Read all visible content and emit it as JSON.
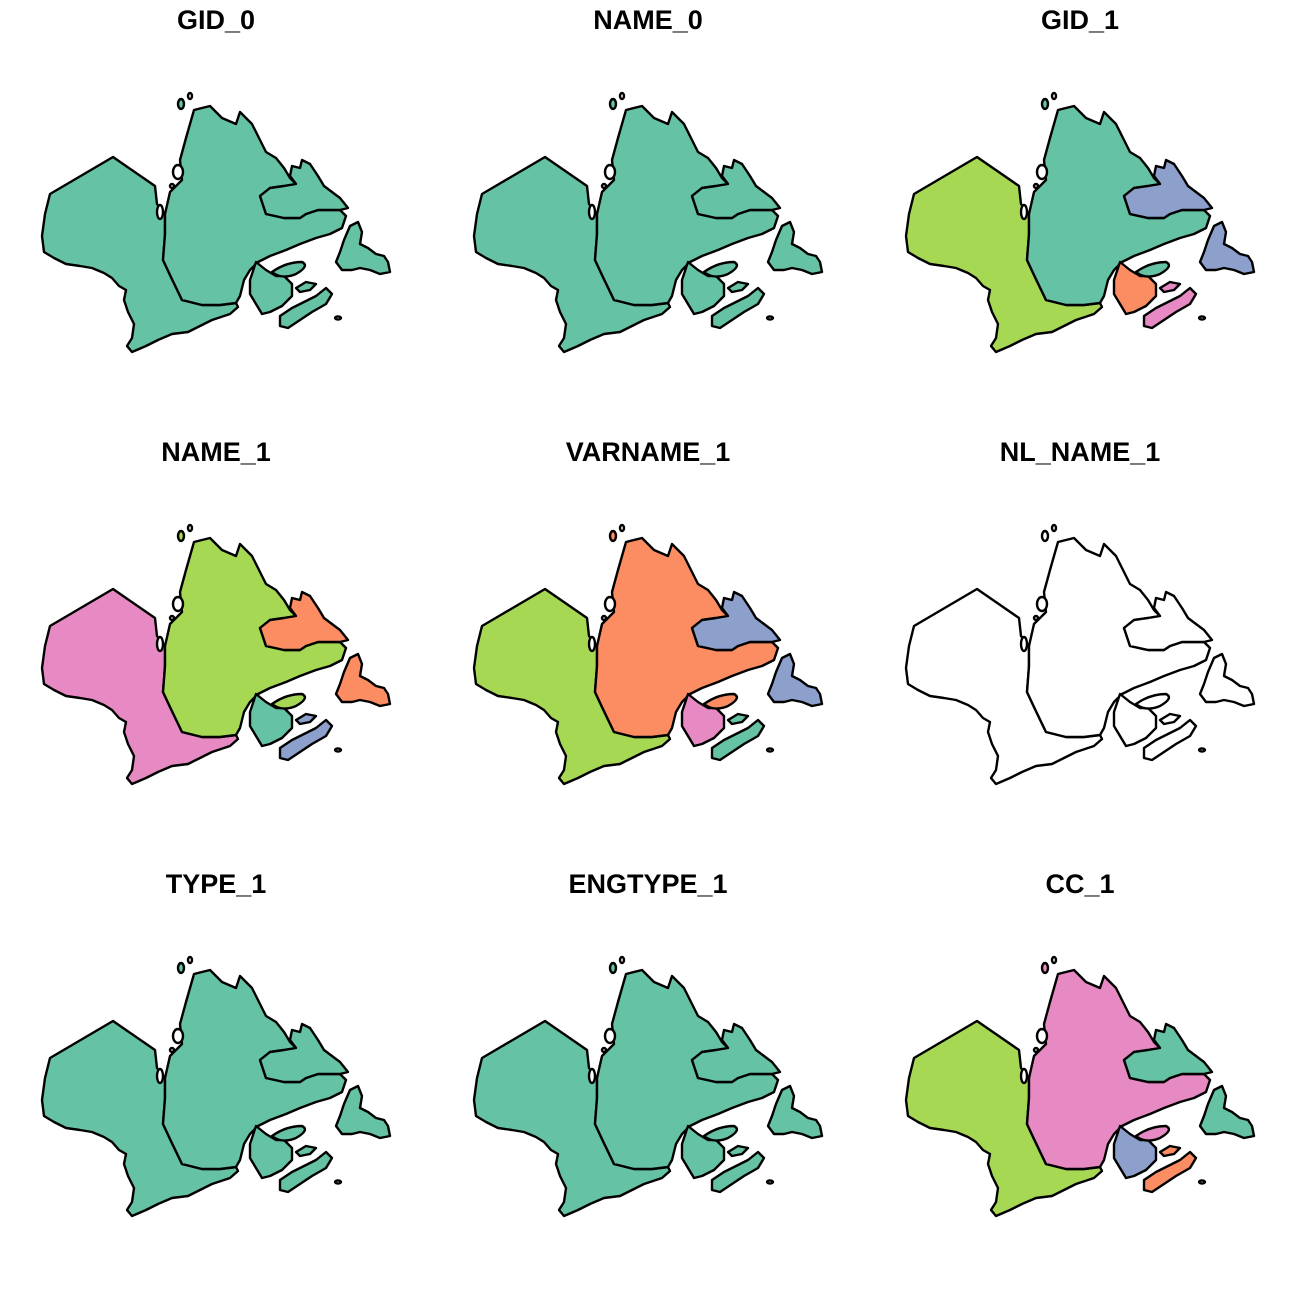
{
  "palette": {
    "teal": "#66c2a5",
    "orange": "#fc8d62",
    "blue": "#8da0cb",
    "pink": "#e78ac3",
    "green": "#a6d854",
    "none": "#ffffff",
    "outline": "#000000"
  },
  "panels": [
    {
      "title": "GID_0",
      "fills": {
        "ontario": "teal",
        "quebec": "teal",
        "labrador": "teal",
        "newfoundland": "teal",
        "newbrunswick": "teal",
        "novascotia": "teal",
        "pei": "teal",
        "anticosti": "teal"
      }
    },
    {
      "title": "NAME_0",
      "fills": {
        "ontario": "teal",
        "quebec": "teal",
        "labrador": "teal",
        "newfoundland": "teal",
        "newbrunswick": "teal",
        "novascotia": "teal",
        "pei": "teal",
        "anticosti": "teal"
      }
    },
    {
      "title": "GID_1",
      "fills": {
        "ontario": "green",
        "quebec": "teal",
        "labrador": "blue",
        "newfoundland": "blue",
        "newbrunswick": "orange",
        "novascotia": "pink",
        "pei": "pink",
        "anticosti": "teal"
      }
    },
    {
      "title": "NAME_1",
      "fills": {
        "ontario": "pink",
        "quebec": "green",
        "labrador": "orange",
        "newfoundland": "orange",
        "newbrunswick": "teal",
        "novascotia": "blue",
        "pei": "blue",
        "anticosti": "green"
      }
    },
    {
      "title": "VARNAME_1",
      "fills": {
        "ontario": "green",
        "quebec": "orange",
        "labrador": "blue",
        "newfoundland": "blue",
        "newbrunswick": "pink",
        "novascotia": "teal",
        "pei": "teal",
        "anticosti": "orange"
      }
    },
    {
      "title": "NL_NAME_1",
      "fills": {
        "ontario": "none",
        "quebec": "none",
        "labrador": "none",
        "newfoundland": "none",
        "newbrunswick": "none",
        "novascotia": "none",
        "pei": "none",
        "anticosti": "none"
      }
    },
    {
      "title": "TYPE_1",
      "fills": {
        "ontario": "teal",
        "quebec": "teal",
        "labrador": "teal",
        "newfoundland": "teal",
        "newbrunswick": "teal",
        "novascotia": "teal",
        "pei": "teal",
        "anticosti": "teal"
      }
    },
    {
      "title": "ENGTYPE_1",
      "fills": {
        "ontario": "teal",
        "quebec": "teal",
        "labrador": "teal",
        "newfoundland": "teal",
        "newbrunswick": "teal",
        "novascotia": "teal",
        "pei": "teal",
        "anticosti": "teal"
      }
    },
    {
      "title": "CC_1",
      "fills": {
        "ontario": "green",
        "quebec": "pink",
        "labrador": "teal",
        "newfoundland": "teal",
        "newbrunswick": "blue",
        "novascotia": "orange",
        "pei": "orange",
        "anticosti": "pink"
      }
    }
  ]
}
